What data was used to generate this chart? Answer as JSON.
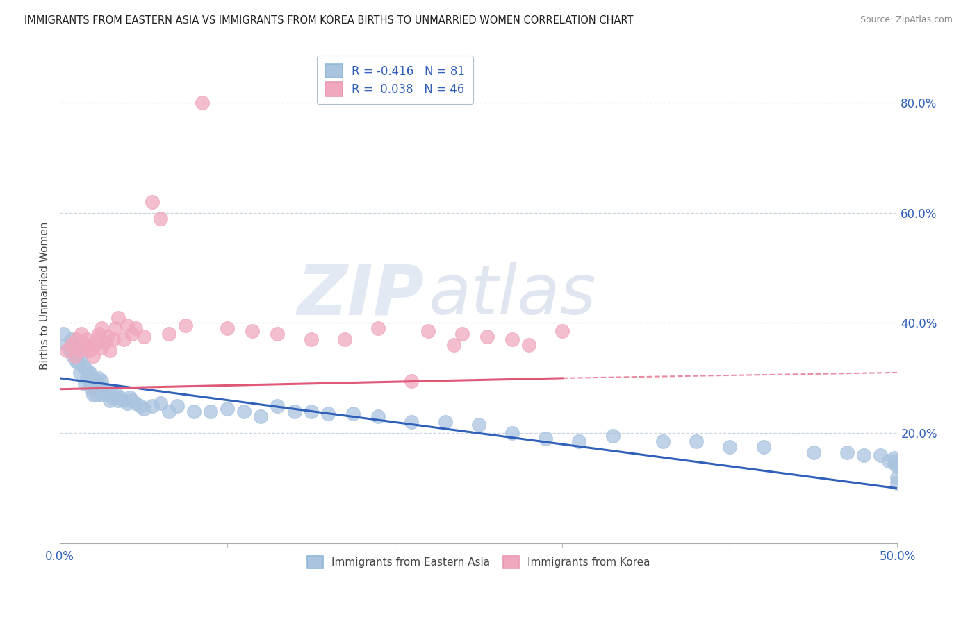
{
  "title": "IMMIGRANTS FROM EASTERN ASIA VS IMMIGRANTS FROM KOREA BIRTHS TO UNMARRIED WOMEN CORRELATION CHART",
  "source": "Source: ZipAtlas.com",
  "ylabel": "Births to Unmarried Women",
  "xlim": [
    0.0,
    0.5
  ],
  "ylim": [
    0.0,
    0.9
  ],
  "y_ticks_right": [
    0.2,
    0.4,
    0.6,
    0.8
  ],
  "y_tick_labels_right": [
    "20.0%",
    "40.0%",
    "60.0%",
    "80.0%"
  ],
  "blue_R": "-0.416",
  "blue_N": "81",
  "pink_R": "0.038",
  "pink_N": "46",
  "legend_label_blue": "Immigrants from Eastern Asia",
  "legend_label_pink": "Immigrants from Korea",
  "blue_color": "#aac4df",
  "pink_color": "#f0a8be",
  "blue_line_color": "#3060b8",
  "pink_line_color": "#e05878",
  "watermark_zip": "ZIP",
  "watermark_atlas": "atlas",
  "background_color": "#ffffff",
  "grid_color": "#c8d4e0",
  "blue_scatter_x": [
    0.002,
    0.004,
    0.006,
    0.007,
    0.008,
    0.009,
    0.01,
    0.01,
    0.011,
    0.012,
    0.013,
    0.014,
    0.015,
    0.015,
    0.016,
    0.017,
    0.018,
    0.018,
    0.019,
    0.02,
    0.02,
    0.021,
    0.022,
    0.022,
    0.023,
    0.024,
    0.025,
    0.025,
    0.026,
    0.027,
    0.028,
    0.03,
    0.031,
    0.032,
    0.033,
    0.035,
    0.036,
    0.038,
    0.04,
    0.042,
    0.043,
    0.045,
    0.048,
    0.05,
    0.055,
    0.06,
    0.065,
    0.07,
    0.08,
    0.09,
    0.1,
    0.11,
    0.12,
    0.13,
    0.14,
    0.15,
    0.16,
    0.175,
    0.19,
    0.21,
    0.23,
    0.25,
    0.27,
    0.29,
    0.31,
    0.33,
    0.36,
    0.38,
    0.4,
    0.42,
    0.45,
    0.47,
    0.48,
    0.49,
    0.495,
    0.498,
    0.498,
    0.5,
    0.5,
    0.5,
    0.5
  ],
  "blue_scatter_y": [
    0.38,
    0.36,
    0.35,
    0.37,
    0.34,
    0.36,
    0.33,
    0.35,
    0.33,
    0.31,
    0.34,
    0.32,
    0.29,
    0.32,
    0.3,
    0.31,
    0.29,
    0.31,
    0.28,
    0.27,
    0.3,
    0.28,
    0.27,
    0.295,
    0.3,
    0.28,
    0.27,
    0.295,
    0.275,
    0.28,
    0.27,
    0.26,
    0.27,
    0.265,
    0.275,
    0.26,
    0.265,
    0.26,
    0.255,
    0.265,
    0.26,
    0.255,
    0.25,
    0.245,
    0.25,
    0.255,
    0.24,
    0.25,
    0.24,
    0.24,
    0.245,
    0.24,
    0.23,
    0.25,
    0.24,
    0.24,
    0.235,
    0.235,
    0.23,
    0.22,
    0.22,
    0.215,
    0.2,
    0.19,
    0.185,
    0.195,
    0.185,
    0.185,
    0.175,
    0.175,
    0.165,
    0.165,
    0.16,
    0.16,
    0.15,
    0.145,
    0.155,
    0.14,
    0.15,
    0.11,
    0.12
  ],
  "pink_scatter_x": [
    0.004,
    0.007,
    0.009,
    0.01,
    0.012,
    0.013,
    0.015,
    0.016,
    0.017,
    0.018,
    0.02,
    0.021,
    0.022,
    0.023,
    0.025,
    0.025,
    0.027,
    0.028,
    0.03,
    0.032,
    0.033,
    0.035,
    0.038,
    0.04,
    0.043,
    0.045,
    0.05,
    0.055,
    0.06,
    0.065,
    0.075,
    0.085,
    0.1,
    0.115,
    0.13,
    0.15,
    0.17,
    0.19,
    0.21,
    0.22,
    0.235,
    0.24,
    0.255,
    0.27,
    0.28,
    0.3
  ],
  "pink_scatter_y": [
    0.35,
    0.36,
    0.34,
    0.37,
    0.35,
    0.38,
    0.36,
    0.37,
    0.36,
    0.35,
    0.34,
    0.36,
    0.37,
    0.38,
    0.355,
    0.39,
    0.365,
    0.375,
    0.35,
    0.37,
    0.39,
    0.41,
    0.37,
    0.395,
    0.38,
    0.39,
    0.375,
    0.62,
    0.59,
    0.38,
    0.395,
    0.8,
    0.39,
    0.385,
    0.38,
    0.37,
    0.37,
    0.39,
    0.295,
    0.385,
    0.36,
    0.38,
    0.375,
    0.37,
    0.36,
    0.385
  ],
  "blue_line_x0": 0.0,
  "blue_line_x1": 0.5,
  "blue_line_y0": 0.3,
  "blue_line_y1": 0.1,
  "pink_line_x0": 0.0,
  "pink_line_x1": 0.3,
  "pink_line_x1_dashed": 0.5,
  "pink_line_y0": 0.28,
  "pink_line_y1": 0.3,
  "pink_line_y1_dashed": 0.31
}
